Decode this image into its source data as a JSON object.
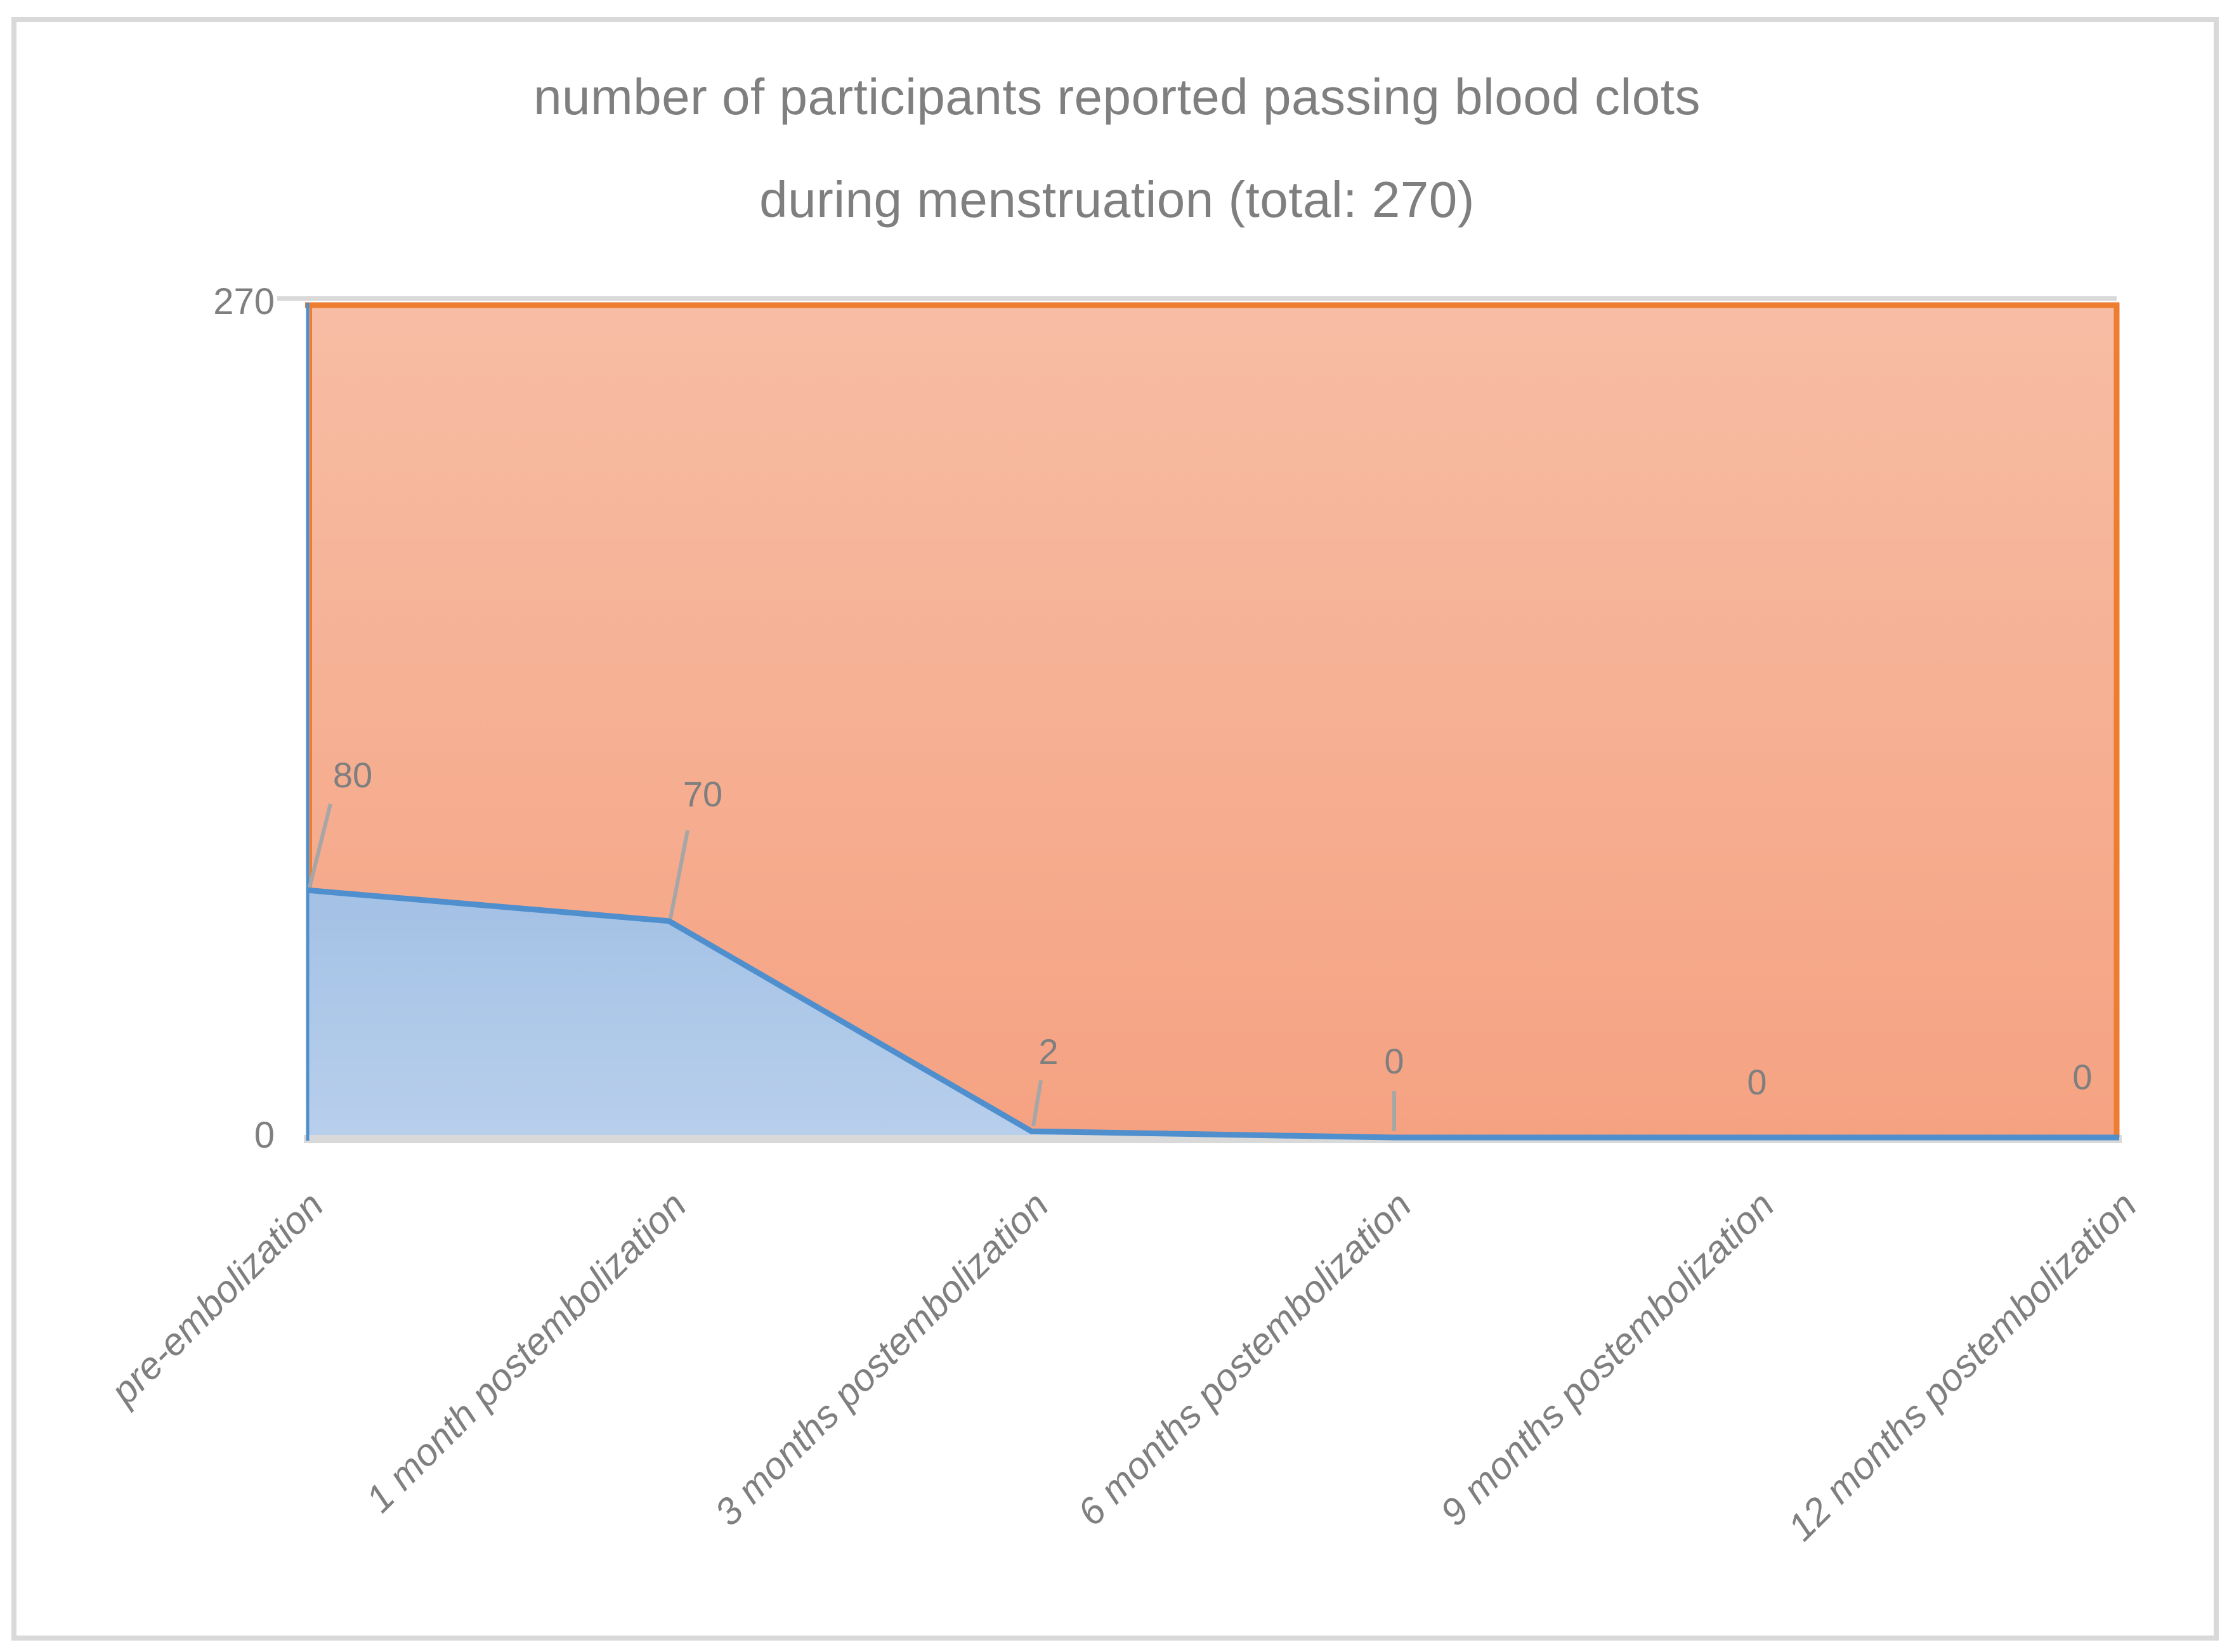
{
  "chart_data": {
    "type": "area",
    "title_lines": [
      "number of participants reported passing blood clots",
      "during menstruation (total: 270)"
    ],
    "categories": [
      "pre-embolization",
      "1 month postembolization",
      "3 months postembolization",
      "6 months postembolization",
      "9 months postembolization",
      "12 months postembolization"
    ],
    "values": [
      80,
      70,
      2,
      0,
      0,
      0
    ],
    "data_labels": [
      "80",
      "70",
      "2",
      "0",
      "0",
      "0"
    ],
    "total": 270,
    "y_axis": {
      "max": 270,
      "min": 0,
      "tick_labels": [
        "270",
        "0"
      ]
    },
    "grid": false,
    "legend": false,
    "colors": {
      "blue_line": "#4f8fcd",
      "blue_fill_top": "#a3c1e5",
      "blue_fill_bottom": "#b8cfec",
      "orange_line": "#ed7d31",
      "orange_fill_top": "#f7bda4",
      "orange_fill_bottom": "#f5a282",
      "text_gray": "#7f7f7f",
      "leader_gray": "#a6a6a6",
      "frame_gray": "#d9d9d9"
    }
  }
}
